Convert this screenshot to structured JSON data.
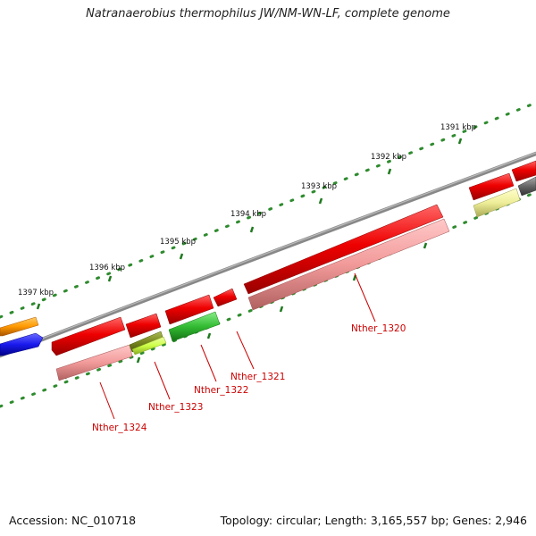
{
  "title": "Natranaerobius thermophilus JW/NM-WN-LF, complete genome",
  "footer": {
    "accession": "Accession: NC_010718",
    "summary": "Topology: circular; Length: 3,165,557 bp; Genes: 2,946"
  },
  "ruler_labels": [
    "1391 kbp",
    "1392 kbp",
    "1393 kbp",
    "1394 kbp",
    "1395 kbp",
    "1396 kbp",
    "1397 kbp"
  ],
  "gene_labels": [
    "Nther_1320",
    "Nther_1321",
    "Nther_1322",
    "Nther_1323",
    "Nther_1324"
  ],
  "colors": {
    "backbone": "#8a8a8a",
    "tick": "#2e8b2e",
    "label_red": "#cc0000",
    "gene_red": "#ee0000",
    "gene_pink": "#f29a9a",
    "gene_green": "#33bb33",
    "gene_olive": "#7a8a20",
    "gene_lime": "#ccff44",
    "gene_orange": "#ff9900",
    "gene_blue": "#1a1aee",
    "gene_yellow": "#eeee99",
    "gene_gray": "#666666"
  }
}
